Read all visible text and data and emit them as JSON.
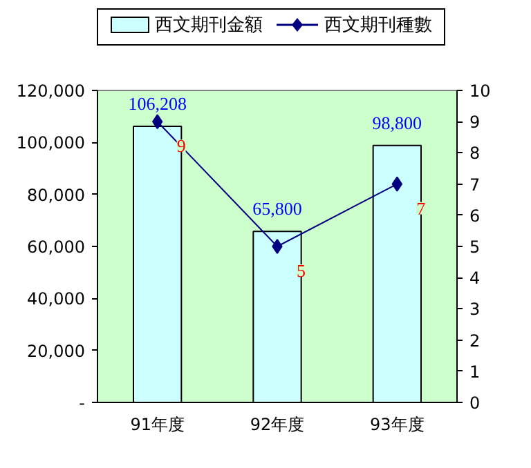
{
  "chart_data": {
    "type": "bar",
    "categories": [
      "91年度",
      "92年度",
      "93年度"
    ],
    "series": [
      {
        "name": "西文期刊金額",
        "color": "#ccffff",
        "values": [
          106208,
          65800,
          98800
        ],
        "value_labels": [
          "106,208",
          "65,800",
          "98,800"
        ]
      },
      {
        "name": "西文期刊種數",
        "type": "line",
        "color": "#000080",
        "values": [
          9,
          5,
          7
        ],
        "axis": "y2",
        "marker": "diamond",
        "value_labels": [
          "9",
          "5",
          "7"
        ]
      }
    ],
    "ylim": [
      0,
      120000
    ],
    "yticks": [
      {
        "value": 0,
        "label": "-"
      },
      {
        "value": 20000,
        "label": "20,000"
      },
      {
        "value": 40000,
        "label": "40,000"
      },
      {
        "value": 60000,
        "label": "60,000"
      },
      {
        "value": 80000,
        "label": "80,000"
      },
      {
        "value": 100000,
        "label": "100,000"
      },
      {
        "value": 120000,
        "label": "120,000"
      }
    ],
    "y2lim": [
      0,
      10
    ],
    "y2ticks": [
      0,
      1,
      2,
      3,
      4,
      5,
      6,
      7,
      8,
      9,
      10
    ],
    "legend": "top",
    "grid": false
  }
}
